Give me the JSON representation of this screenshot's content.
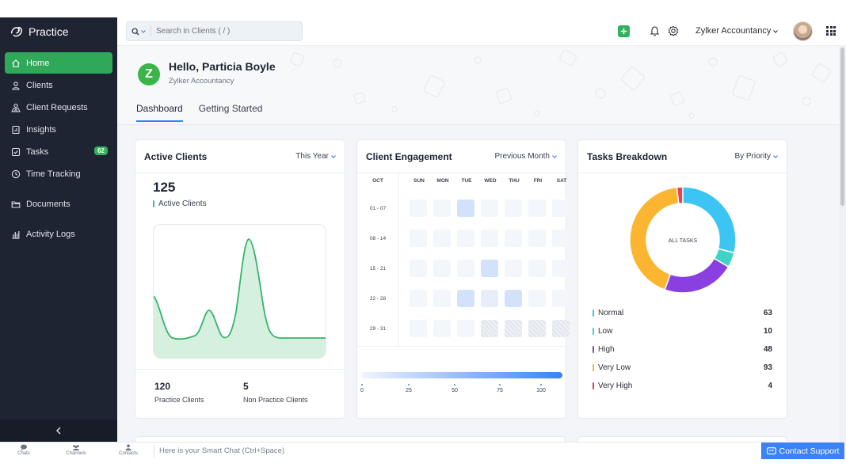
{
  "app": {
    "brand": "Practice",
    "org": "Zylker Accountancy"
  },
  "search": {
    "placeholder": "Search in Clients ( / )"
  },
  "sidebar": {
    "items": [
      {
        "label": "Home",
        "icon": "home-icon"
      },
      {
        "label": "Clients",
        "icon": "user-icon"
      },
      {
        "label": "Client Requests",
        "icon": "users-icon"
      },
      {
        "label": "Insights",
        "icon": "insights-icon"
      },
      {
        "label": "Tasks",
        "icon": "checkbox-icon",
        "badge": "62"
      },
      {
        "label": "Time Tracking",
        "icon": "clock-icon"
      },
      {
        "label": "Documents",
        "icon": "folder-icon"
      },
      {
        "label": "Activity Logs",
        "icon": "bar-chart-icon"
      }
    ]
  },
  "hero": {
    "avatar_letter": "Z",
    "greeting": "Hello, Particia Boyle",
    "org": "Zylker Accountancy",
    "tabs": [
      "Dashboard",
      "Getting Started"
    ]
  },
  "active_clients": {
    "title": "Active Clients",
    "filter": "This Year",
    "count": "125",
    "count_label": "Active Clients",
    "accent": "#3bb5f0",
    "line_color": "#36b36a",
    "practice_value": "120",
    "practice_label": "Practice Clients",
    "non_practice_value": "5",
    "non_practice_label": "Non Practice Clients"
  },
  "engagement": {
    "title": "Client Engagement",
    "filter": "Previous Month",
    "month": "OCT",
    "days": [
      "SUN",
      "MON",
      "TUE",
      "WED",
      "THU",
      "FRI",
      "SAT"
    ],
    "weeks": [
      "01 - 07",
      "08 - 14",
      "15 - 21",
      "22 - 28",
      "29 - 31"
    ],
    "scale": [
      "0",
      "25",
      "50",
      "75",
      "100"
    ]
  },
  "tasks": {
    "title": "Tasks Breakdown",
    "filter": "By Priority",
    "center_label": "ALL TASKS",
    "items": [
      {
        "label": "Normal",
        "value": "63",
        "color": "#3cc4f2"
      },
      {
        "label": "Low",
        "value": "10",
        "color": "#3fd3c8"
      },
      {
        "label": "High",
        "value": "48",
        "color": "#8a3fe0"
      },
      {
        "label": "Very Low",
        "value": "93",
        "color": "#fbb531"
      },
      {
        "label": "Very High",
        "value": "4",
        "color": "#e8415a"
      }
    ]
  },
  "bottom": {
    "chats": "Chats",
    "channels": "Channels",
    "contacts": "Contacts",
    "smart_chat": "Here is your Smart Chat (Ctrl+Space)",
    "support": "Contact Support"
  }
}
